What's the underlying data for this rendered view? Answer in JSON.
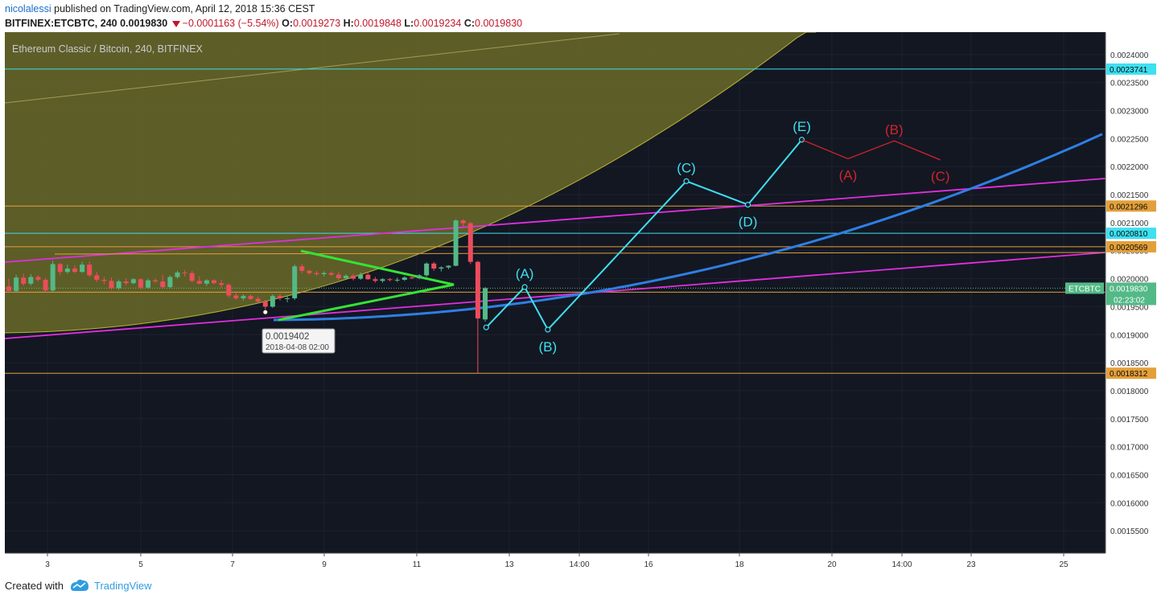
{
  "header": {
    "author": "nicolalessi",
    "published_text": "published on TradingView.com, April 12, 2018 15:36 CEST",
    "symbol": "BITFINEX:ETCBTC, 240",
    "last": "0.0019830",
    "change": "−0.0001163 (−5.54%)",
    "o_label": "O:",
    "o_value": "0.0019273",
    "h_label": "H:",
    "h_value": "0.0019848",
    "l_label": "L:",
    "l_value": "0.0019234",
    "c_label": "C:",
    "c_value": "0.0019830"
  },
  "footer": {
    "created_with": "Created with",
    "brand": "TradingView"
  },
  "chart_data": {
    "type": "candlestick",
    "title": "Ethereum Classic / Bitcoin, 240, BITFINEX",
    "colors": {
      "background": "#131722",
      "up": "#53b987",
      "down": "#eb4d5c",
      "wave": "#3ee0f0",
      "corrective": "#d0242c",
      "channel": "#e22ee0",
      "curve": "#2f7fe3",
      "triangle": "#36e236",
      "level_cyan": "#3ee0f0",
      "level_orange": "#e3a03a",
      "zone": "#6b6a28",
      "grid": "#1e2230"
    },
    "ylim": [
      0.00151,
      0.00244
    ],
    "x_ticks": [
      "3",
      "5",
      "7",
      "9",
      "11",
      "13",
      "14:00",
      "16",
      "18",
      "20",
      "14:00",
      "23",
      "25"
    ],
    "y_ticks": [
      "0.0024000",
      "0.0023500",
      "0.0023000",
      "0.0022500",
      "0.0022000",
      "0.0021500",
      "0.0021000",
      "0.0020500",
      "0.0020000",
      "0.0019500",
      "0.0019000",
      "0.0018500",
      "0.0018000",
      "0.0017500",
      "0.0017000",
      "0.0016500",
      "0.0016000",
      "0.0015500"
    ],
    "candles": [
      {
        "o": 0.001986,
        "h": 0.002,
        "l": 0.001976,
        "c": 0.001978
      },
      {
        "o": 0.001978,
        "h": 0.002007,
        "l": 0.001976,
        "c": 0.002002
      },
      {
        "o": 0.002002,
        "h": 0.002009,
        "l": 0.001987,
        "c": 0.001991
      },
      {
        "o": 0.001991,
        "h": 0.002008,
        "l": 0.001988,
        "c": 0.002003
      },
      {
        "o": 0.002003,
        "h": 0.002006,
        "l": 0.001995,
        "c": 0.001998
      },
      {
        "o": 0.001998,
        "h": 0.002002,
        "l": 0.001976,
        "c": 0.001979
      },
      {
        "o": 0.001979,
        "h": 0.002032,
        "l": 0.001976,
        "c": 0.002026
      },
      {
        "o": 0.002026,
        "h": 0.002028,
        "l": 0.002006,
        "c": 0.002012
      },
      {
        "o": 0.002012,
        "h": 0.002025,
        "l": 0.002009,
        "c": 0.002018
      },
      {
        "o": 0.002018,
        "h": 0.002024,
        "l": 0.00201,
        "c": 0.002012
      },
      {
        "o": 0.002012,
        "h": 0.00203,
        "l": 0.00201,
        "c": 0.002025
      },
      {
        "o": 0.002025,
        "h": 0.002031,
        "l": 0.002003,
        "c": 0.002006
      },
      {
        "o": 0.002006,
        "h": 0.002012,
        "l": 0.001994,
        "c": 0.001998
      },
      {
        "o": 0.001998,
        "h": 0.002003,
        "l": 0.00199,
        "c": 0.001996
      },
      {
        "o": 0.001996,
        "h": 0.002002,
        "l": 0.00198,
        "c": 0.001983
      },
      {
        "o": 0.001983,
        "h": 0.001998,
        "l": 0.00198,
        "c": 0.001995
      },
      {
        "o": 0.001995,
        "h": 0.002001,
        "l": 0.001988,
        "c": 0.001992
      },
      {
        "o": 0.001992,
        "h": 0.002001,
        "l": 0.00199,
        "c": 0.001999
      },
      {
        "o": 0.001999,
        "h": 0.002001,
        "l": 0.001981,
        "c": 0.001984
      },
      {
        "o": 0.001984,
        "h": 0.002,
        "l": 0.001982,
        "c": 0.001997
      },
      {
        "o": 0.001997,
        "h": 0.002001,
        "l": 0.001992,
        "c": 0.001995
      },
      {
        "o": 0.001995,
        "h": 0.002007,
        "l": 0.001983,
        "c": 0.001985
      },
      {
        "o": 0.001985,
        "h": 0.002006,
        "l": 0.001983,
        "c": 0.002003
      },
      {
        "o": 0.002003,
        "h": 0.002014,
        "l": 0.002,
        "c": 0.002011
      },
      {
        "o": 0.002011,
        "h": 0.002015,
        "l": 0.002004,
        "c": 0.00201
      },
      {
        "o": 0.00201,
        "h": 0.002014,
        "l": 0.001993,
        "c": 0.001996
      },
      {
        "o": 0.001996,
        "h": 0.002004,
        "l": 0.00199,
        "c": 0.001991
      },
      {
        "o": 0.001991,
        "h": 0.001999,
        "l": 0.001987,
        "c": 0.001997
      },
      {
        "o": 0.001997,
        "h": 0.001999,
        "l": 0.00199,
        "c": 0.001992
      },
      {
        "o": 0.001992,
        "h": 0.001998,
        "l": 0.001984,
        "c": 0.001989
      },
      {
        "o": 0.001989,
        "h": 0.001992,
        "l": 0.001966,
        "c": 0.00197
      },
      {
        "o": 0.00197,
        "h": 0.001978,
        "l": 0.001962,
        "c": 0.001965
      },
      {
        "o": 0.001965,
        "h": 0.001972,
        "l": 0.001961,
        "c": 0.001969
      },
      {
        "o": 0.001969,
        "h": 0.001972,
        "l": 0.001962,
        "c": 0.001964
      },
      {
        "o": 0.001964,
        "h": 0.001968,
        "l": 0.001957,
        "c": 0.001959
      },
      {
        "o": 0.001959,
        "h": 0.001962,
        "l": 0.0019402,
        "c": 0.00195
      },
      {
        "o": 0.00195,
        "h": 0.001972,
        "l": 0.001948,
        "c": 0.001969
      },
      {
        "o": 0.001969,
        "h": 0.001973,
        "l": 0.001961,
        "c": 0.001965
      },
      {
        "o": 0.001965,
        "h": 0.00197,
        "l": 0.001958,
        "c": 0.001965
      },
      {
        "o": 0.001965,
        "h": 0.002025,
        "l": 0.001962,
        "c": 0.002022
      },
      {
        "o": 0.002022,
        "h": 0.002026,
        "l": 0.00201,
        "c": 0.002014
      },
      {
        "o": 0.002014,
        "h": 0.002016,
        "l": 0.002007,
        "c": 0.00201
      },
      {
        "o": 0.00201,
        "h": 0.002014,
        "l": 0.002005,
        "c": 0.002008
      },
      {
        "o": 0.002008,
        "h": 0.002013,
        "l": 0.002004,
        "c": 0.00201
      },
      {
        "o": 0.00201,
        "h": 0.002013,
        "l": 0.002005,
        "c": 0.002007
      },
      {
        "o": 0.002007,
        "h": 0.002012,
        "l": 0.001998,
        "c": 0.002001
      },
      {
        "o": 0.002001,
        "h": 0.002008,
        "l": 0.001998,
        "c": 0.002005
      },
      {
        "o": 0.002005,
        "h": 0.002009,
        "l": 0.001997,
        "c": 0.002
      },
      {
        "o": 0.002,
        "h": 0.002011,
        "l": 0.001998,
        "c": 0.002007
      },
      {
        "o": 0.002007,
        "h": 0.002011,
        "l": 0.001998,
        "c": 0.001999
      },
      {
        "o": 0.001999,
        "h": 0.002003,
        "l": 0.001993,
        "c": 0.001996
      },
      {
        "o": 0.001996,
        "h": 0.002001,
        "l": 0.001993,
        "c": 0.001999
      },
      {
        "o": 0.001999,
        "h": 0.002001,
        "l": 0.001995,
        "c": 0.001998
      },
      {
        "o": 0.001998,
        "h": 0.002002,
        "l": 0.001994,
        "c": 0.001998
      },
      {
        "o": 0.001998,
        "h": 0.002004,
        "l": 0.001996,
        "c": 0.002002
      },
      {
        "o": 0.002002,
        "h": 0.002006,
        "l": 0.001999,
        "c": 0.002001
      },
      {
        "o": 0.002001,
        "h": 0.002008,
        "l": 0.001999,
        "c": 0.002006
      },
      {
        "o": 0.002006,
        "h": 0.002029,
        "l": 0.002003,
        "c": 0.002027
      },
      {
        "o": 0.002027,
        "h": 0.00203,
        "l": 0.002014,
        "c": 0.002018
      },
      {
        "o": 0.002018,
        "h": 0.002022,
        "l": 0.002013,
        "c": 0.00202
      },
      {
        "o": 0.00202,
        "h": 0.002024,
        "l": 0.002017,
        "c": 0.002023
      },
      {
        "o": 0.002023,
        "h": 0.002106,
        "l": 0.002022,
        "c": 0.002104
      },
      {
        "o": 0.002104,
        "h": 0.002106,
        "l": 0.002093,
        "c": 0.002099
      },
      {
        "o": 0.002099,
        "h": 0.002101,
        "l": 0.002026,
        "c": 0.00203
      },
      {
        "o": 0.00203,
        "h": 0.002032,
        "l": 0.0018312,
        "c": 0.001929
      },
      {
        "o": 0.0019273,
        "h": 0.0019848,
        "l": 0.0019234,
        "c": 0.001983
      }
    ],
    "wave_labels": [
      {
        "label": "(A)",
        "date": "13 08:00",
        "price": 0.001985
      },
      {
        "label": "(B)",
        "date": "13 20:00",
        "price": 0.001909
      },
      {
        "label": "(C)",
        "date": "16 20:00",
        "price": 0.002174
      },
      {
        "label": "(D)",
        "date": "18 04:00",
        "price": 0.002132
      },
      {
        "label": "(E)",
        "date": "19 08:00",
        "price": 0.002248
      }
    ],
    "wave_start": {
      "date": "12 12:00",
      "price": 0.001913
    },
    "corrective_labels": [
      {
        "label": "(A)",
        "date": "20 08:00",
        "price": 0.002214
      },
      {
        "label": "(B)",
        "date": "21 08:00",
        "price": 0.002246
      },
      {
        "label": "(C)",
        "date": "22 08:00",
        "price": 0.002212
      }
    ],
    "levels": [
      {
        "value": "0.0023741",
        "price": 0.0023741,
        "color": "cyan"
      },
      {
        "value": "0.0021296",
        "price": 0.0021296,
        "color": "orange"
      },
      {
        "value": "0.0020810",
        "price": 0.002081,
        "color": "cyan"
      },
      {
        "value": "0.0020569",
        "price": 0.0020569,
        "color": "orange"
      },
      {
        "value": "0.0019759",
        "price": 0.0019759,
        "color": "orange"
      },
      {
        "value": "0.0018312",
        "price": 0.0018312,
        "color": "orange"
      }
    ],
    "last_price": {
      "symbol": "ETCBTC",
      "value": "0.0019830",
      "price": 0.001983,
      "countdown": "02:23:02"
    },
    "low_marker": {
      "price": "0.0019402",
      "date": "2018-04-08 02:00"
    }
  }
}
